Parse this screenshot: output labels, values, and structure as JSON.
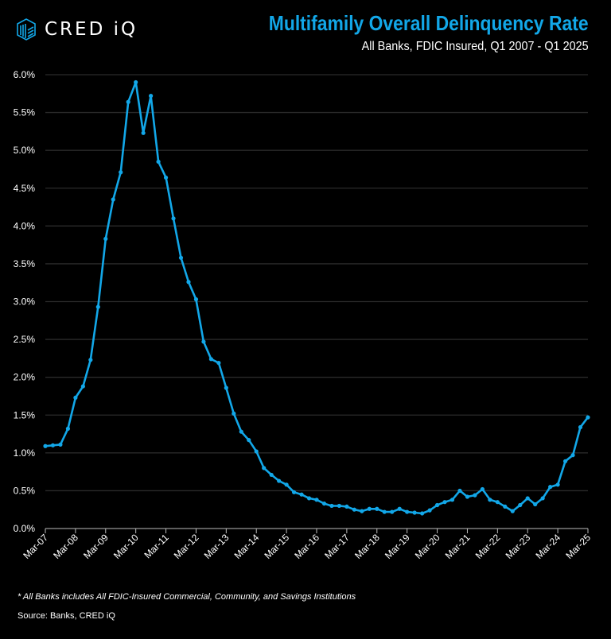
{
  "logo": {
    "text": "CRED iQ"
  },
  "header": {
    "title": "Multifamily Overall Delinquency Rate",
    "subtitle": "All Banks, FDIC Insured, Q1 2007 - Q1 2025"
  },
  "footer": {
    "note": "* All Banks includes All FDIC-Insured Commercial, Community, and Savings Institutions",
    "source": "Source: Banks, CRED iQ"
  },
  "colors": {
    "line": "#12a7e8",
    "grid": "#2a2a2a",
    "background": "#000000"
  },
  "chart_data": {
    "type": "line",
    "title": "Multifamily Overall Delinquency Rate",
    "xlabel": "",
    "ylabel": "",
    "ylim": [
      0,
      6
    ],
    "yticks": [
      "0.0%",
      "0.5%",
      "1.0%",
      "1.5%",
      "2.0%",
      "2.5%",
      "3.0%",
      "3.5%",
      "4.0%",
      "4.5%",
      "5.0%",
      "5.5%",
      "6.0%"
    ],
    "xticks": [
      "Mar-07",
      "Mar-08",
      "Mar-09",
      "Mar-10",
      "Mar-11",
      "Mar-12",
      "Mar-13",
      "Mar-14",
      "Mar-15",
      "Mar-16",
      "Mar-17",
      "Mar-18",
      "Mar-19",
      "Mar-20",
      "Mar-21",
      "Mar-22",
      "Mar-23",
      "Mar-24",
      "Mar-25"
    ],
    "grid": true,
    "series": [
      {
        "name": "Delinquency Rate (%)",
        "start": "Q1 2007",
        "frequency": "quarterly",
        "values": [
          1.09,
          1.1,
          1.11,
          1.32,
          1.73,
          1.88,
          2.23,
          2.93,
          3.83,
          4.35,
          4.71,
          5.64,
          5.9,
          5.23,
          5.72,
          4.85,
          4.64,
          4.1,
          3.58,
          3.26,
          3.03,
          2.47,
          2.24,
          2.19,
          1.86,
          1.52,
          1.28,
          1.17,
          1.02,
          0.8,
          0.71,
          0.63,
          0.58,
          0.48,
          0.45,
          0.4,
          0.38,
          0.33,
          0.3,
          0.3,
          0.29,
          0.25,
          0.23,
          0.26,
          0.26,
          0.22,
          0.22,
          0.26,
          0.22,
          0.21,
          0.2,
          0.24,
          0.31,
          0.35,
          0.38,
          0.5,
          0.42,
          0.44,
          0.52,
          0.38,
          0.35,
          0.29,
          0.23,
          0.31,
          0.4,
          0.32,
          0.4,
          0.55,
          0.58,
          0.89,
          0.97,
          1.34,
          1.47
        ]
      }
    ]
  }
}
